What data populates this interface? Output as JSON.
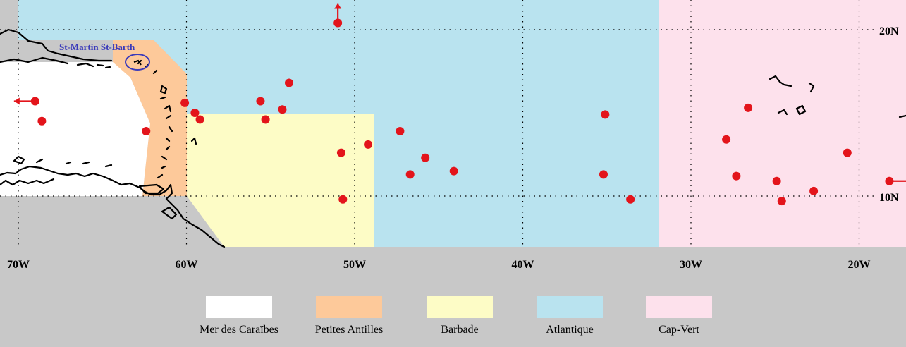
{
  "map": {
    "annotation": "St-Martin St-Barth",
    "lat_labels": [
      {
        "lat": 20,
        "text": "20N"
      },
      {
        "lat": 10,
        "text": "10N"
      }
    ],
    "lon_labels": [
      {
        "lon": -70,
        "text": "70W"
      },
      {
        "lon": -60,
        "text": "60W"
      },
      {
        "lon": -50,
        "text": "50W"
      },
      {
        "lon": -40,
        "text": "40W"
      },
      {
        "lon": -30,
        "text": "30W"
      },
      {
        "lon": -20,
        "text": "20W"
      }
    ],
    "colors": {
      "mer_des_caraibes": "#ffffff",
      "petites_antilles": "#fdc99a",
      "barbade": "#fdfcc6",
      "atlantique": "#b9e3ef",
      "cap_vert": "#fde1ec",
      "land": "#c8c8c8",
      "marker": "#e3141b",
      "annotation": "#3a3aba"
    },
    "markers": [
      {
        "lon": -51.0,
        "lat": 20.4
      },
      {
        "lon": -69.0,
        "lat": 15.7
      },
      {
        "lon": -68.6,
        "lat": 14.5
      },
      {
        "lon": -60.1,
        "lat": 15.6
      },
      {
        "lon": -62.4,
        "lat": 13.9
      },
      {
        "lon": -59.5,
        "lat": 15.0
      },
      {
        "lon": -59.2,
        "lat": 14.6
      },
      {
        "lon": -55.6,
        "lat": 15.7
      },
      {
        "lon": -53.9,
        "lat": 16.8
      },
      {
        "lon": -54.3,
        "lat": 15.2
      },
      {
        "lon": -55.3,
        "lat": 14.6
      },
      {
        "lon": -50.8,
        "lat": 12.6
      },
      {
        "lon": -49.2,
        "lat": 13.1
      },
      {
        "lon": -47.3,
        "lat": 13.9
      },
      {
        "lon": -45.8,
        "lat": 12.3
      },
      {
        "lon": -46.7,
        "lat": 11.3
      },
      {
        "lon": -44.1,
        "lat": 11.5
      },
      {
        "lon": -50.7,
        "lat": 9.8
      },
      {
        "lon": -35.1,
        "lat": 14.9
      },
      {
        "lon": -35.2,
        "lat": 11.3
      },
      {
        "lon": -33.6,
        "lat": 9.8
      },
      {
        "lon": -26.6,
        "lat": 15.3
      },
      {
        "lon": -27.9,
        "lat": 13.4
      },
      {
        "lon": -27.3,
        "lat": 11.2
      },
      {
        "lon": -24.9,
        "lat": 10.9
      },
      {
        "lon": -22.7,
        "lat": 10.3
      },
      {
        "lon": -24.6,
        "lat": 9.7
      },
      {
        "lon": -20.7,
        "lat": 12.6
      },
      {
        "lon": -18.2,
        "lat": 10.9
      }
    ],
    "arrows": [
      {
        "from": {
          "lon": -69.0,
          "lat": 15.7
        },
        "dir": "west"
      },
      {
        "from": {
          "lon": -51.0,
          "lat": 20.4
        },
        "dir": "north"
      },
      {
        "from": {
          "lon": -18.2,
          "lat": 10.9
        },
        "dir": "east"
      }
    ]
  },
  "legend": [
    {
      "label": "Mer des Caraïbes",
      "color": "#ffffff"
    },
    {
      "label": "Petites Antilles",
      "color": "#fdc99a"
    },
    {
      "label": "Barbade",
      "color": "#fdfcc6"
    },
    {
      "label": "Atlantique",
      "color": "#b9e3ef"
    },
    {
      "label": "Cap-Vert",
      "color": "#fde1ec"
    }
  ]
}
